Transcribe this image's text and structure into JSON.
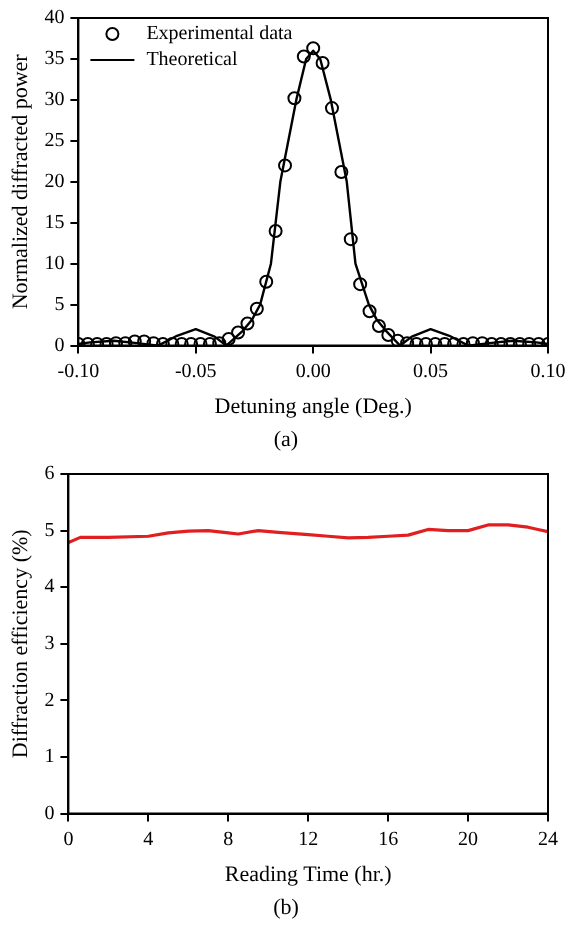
{
  "chart_data": [
    {
      "type": "scatter",
      "xlabel": "Detuning angle (Deg.)",
      "ylabel": "Normalized diffracted power",
      "annotations": [
        "(a)"
      ],
      "xlim": [
        -0.1,
        0.1
      ],
      "ylim": [
        0,
        40
      ],
      "xticks": [
        {
          "value": -0.1,
          "label": "-0.10"
        },
        {
          "value": -0.05,
          "label": "-0.05"
        },
        {
          "value": 0,
          "label": "0.00"
        },
        {
          "value": 0.05,
          "label": "0.05"
        },
        {
          "value": 0.1,
          "label": "0.10"
        }
      ],
      "yticks": [
        0,
        5,
        10,
        15,
        20,
        25,
        30,
        35,
        40
      ],
      "grid": false,
      "legend": "top left",
      "series": [
        {
          "name": "Experimental data",
          "marker": "circle",
          "color": "#000000",
          "x": [
            -0.1,
            -0.096,
            -0.092,
            -0.088,
            -0.084,
            -0.08,
            -0.076,
            -0.072,
            -0.068,
            -0.064,
            -0.06,
            -0.056,
            -0.052,
            -0.048,
            -0.044,
            -0.04,
            -0.036,
            -0.032,
            -0.028,
            -0.024,
            -0.02,
            -0.016,
            -0.012,
            -0.008,
            -0.004,
            0,
            0.004,
            0.008,
            0.012,
            0.016,
            0.02,
            0.024,
            0.028,
            0.032,
            0.036,
            0.04,
            0.044,
            0.048,
            0.052,
            0.056,
            0.06,
            0.064,
            0.068,
            0.072,
            0.076,
            0.08,
            0.084,
            0.088,
            0.092,
            0.096,
            0.1
          ],
          "values": [
            0.2,
            0.2,
            0.2,
            0.2,
            0.3,
            0.3,
            0.5,
            0.5,
            0.3,
            0.2,
            0.2,
            0.2,
            0.2,
            0.2,
            0.2,
            0.3,
            0.8,
            1.6,
            2.7,
            4.5,
            7.8,
            14,
            22,
            30.2,
            35.3,
            36.3,
            34.5,
            29,
            21.2,
            13,
            7.5,
            4.2,
            2.4,
            1.3,
            0.6,
            0.3,
            0.2,
            0.2,
            0.2,
            0.2,
            0.2,
            0.2,
            0.3,
            0.3,
            0.2,
            0.2,
            0.2,
            0.2,
            0.2,
            0.2,
            0.2
          ]
        },
        {
          "name": "Theoretical",
          "type": "line",
          "marker": "none",
          "line_style": "solid",
          "color": "#000000",
          "x": [
            -0.1,
            -0.095,
            -0.085,
            -0.075,
            -0.066,
            -0.058,
            -0.05,
            -0.042,
            -0.037,
            -0.03,
            -0.026,
            -0.0226,
            -0.018,
            -0.014,
            -0.0072,
            -0.003,
            0,
            0.003,
            0.0075,
            0.0143,
            0.018,
            0.0237,
            0.027,
            0.031,
            0.037,
            0.042,
            0.05,
            0.058,
            0.066,
            0.075,
            0.085,
            0.095,
            0.1
          ],
          "values": [
            0.2,
            0.4,
            0.6,
            0.3,
            0,
            1.2,
            2,
            1.1,
            0,
            1.8,
            3.2,
            5,
            10,
            20,
            30,
            35,
            36,
            35,
            30,
            20,
            10,
            5,
            3.2,
            1.8,
            0,
            1.1,
            2,
            1.2,
            0,
            0.3,
            0.6,
            0.4,
            0.2
          ]
        }
      ]
    },
    {
      "type": "line",
      "xlabel": "Reading Time (hr.)",
      "ylabel": "Diffraction efficiency (%)",
      "annotations": [
        "(b)"
      ],
      "xlim": [
        0,
        24
      ],
      "ylim": [
        0,
        6
      ],
      "xticks": [
        0,
        4,
        8,
        12,
        16,
        20,
        24
      ],
      "yticks": [
        0,
        1,
        2,
        3,
        4,
        5,
        6
      ],
      "grid": false,
      "legend": false,
      "series": [
        {
          "marker": "none",
          "line_style": "solid",
          "color": "#e02020",
          "x": [
            0,
            0.6,
            2,
            4,
            5,
            6,
            7,
            8,
            8.5,
            9.5,
            10.5,
            12,
            13,
            14,
            15,
            16,
            17,
            18,
            19,
            20,
            21,
            22,
            23,
            23.5,
            24
          ],
          "values": [
            4.79,
            4.88,
            4.88,
            4.9,
            4.96,
            4.99,
            5,
            4.96,
            4.94,
            5,
            4.97,
            4.93,
            4.9,
            4.87,
            4.88,
            4.9,
            4.92,
            5.02,
            5,
            5,
            5.1,
            5.1,
            5.06,
            5.02,
            4.98
          ]
        }
      ]
    }
  ]
}
